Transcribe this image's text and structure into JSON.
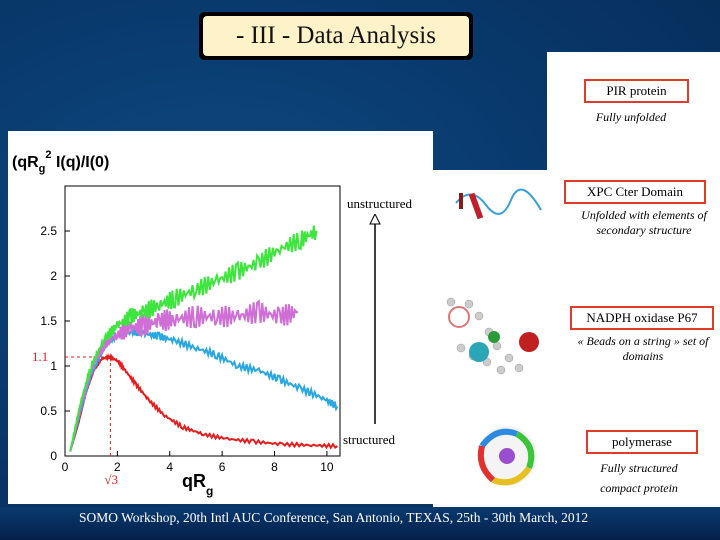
{
  "title": "- III - Data Analysis",
  "chart_data": {
    "type": "line",
    "ylabel": "(qR",
    "ylabel_g": "g",
    "ylabel_sup": "2",
    "ylabel_rest": " I(q)/I(0)",
    "xlabel": "qR",
    "xlabel_sub": "g",
    "xlim": [
      0,
      10.5
    ],
    "ylim": [
      0,
      3.0
    ],
    "xticks": [
      "0",
      "2",
      "4",
      "6",
      "8",
      "10"
    ],
    "yticks": [
      "0",
      "0.5",
      "1",
      "1.5",
      "2",
      "2.5"
    ],
    "annotation_y": "1.1",
    "annotation_x": "√3",
    "arrow_top_label": "unstructured",
    "arrow_bottom_label": "structured",
    "series": [
      {
        "color": "#e81c1c",
        "x": [
          0.2,
          0.5,
          0.8,
          1.1,
          1.4,
          1.7,
          2.0,
          2.3,
          2.7,
          3.2,
          3.8,
          4.5,
          5.3,
          6.2,
          7.2,
          8.3,
          9.4,
          10.4
        ],
        "y": [
          0.05,
          0.35,
          0.7,
          0.95,
          1.08,
          1.1,
          1.06,
          0.95,
          0.8,
          0.62,
          0.45,
          0.32,
          0.24,
          0.19,
          0.16,
          0.13,
          0.12,
          0.11
        ]
      },
      {
        "color": "#29a7e0",
        "x": [
          0.2,
          0.6,
          1.0,
          1.5,
          2.0,
          2.5,
          3.0,
          3.6,
          4.2,
          5.0,
          5.8,
          6.6,
          7.4,
          8.2,
          9.0,
          9.8,
          10.4
        ],
        "y": [
          0.05,
          0.5,
          0.9,
          1.2,
          1.35,
          1.38,
          1.36,
          1.33,
          1.28,
          1.2,
          1.12,
          1.0,
          0.95,
          0.85,
          0.75,
          0.65,
          0.55
        ]
      },
      {
        "color": "#cf6fd6",
        "x": [
          0.2,
          0.6,
          1.0,
          1.5,
          2.0,
          2.5,
          3.0,
          3.6,
          4.2,
          5.0,
          5.8,
          6.6,
          7.4,
          8.2,
          8.9
        ],
        "y": [
          0.05,
          0.55,
          0.95,
          1.25,
          1.35,
          1.42,
          1.45,
          1.5,
          1.52,
          1.55,
          1.55,
          1.55,
          1.6,
          1.55,
          1.6
        ]
      },
      {
        "color": "#3fe53f",
        "x": [
          0.2,
          0.6,
          1.0,
          1.5,
          2.0,
          2.5,
          3.0,
          3.6,
          4.2,
          5.0,
          5.8,
          6.6,
          7.4,
          8.2,
          9.0,
          9.6
        ],
        "y": [
          0.05,
          0.6,
          1.0,
          1.3,
          1.45,
          1.55,
          1.6,
          1.68,
          1.75,
          1.85,
          1.95,
          2.05,
          2.15,
          2.3,
          2.4,
          2.5
        ]
      }
    ]
  },
  "proteins": [
    {
      "name": "PIR protein",
      "desc": "Fully unfolded"
    },
    {
      "name": "XPC Cter Domain",
      "desc": "Unfolded with elements of secondary structure"
    },
    {
      "name": "NADPH oxidase P67",
      "desc": "« Beads on a string » set of domains"
    },
    {
      "name": "polymerase",
      "desc": "Fully structured compact protein"
    }
  ],
  "footer": "SOMO Workshop, 20th Intl AUC Conference,  San Antonio, TEXAS, 25th - 30th March, 2012"
}
